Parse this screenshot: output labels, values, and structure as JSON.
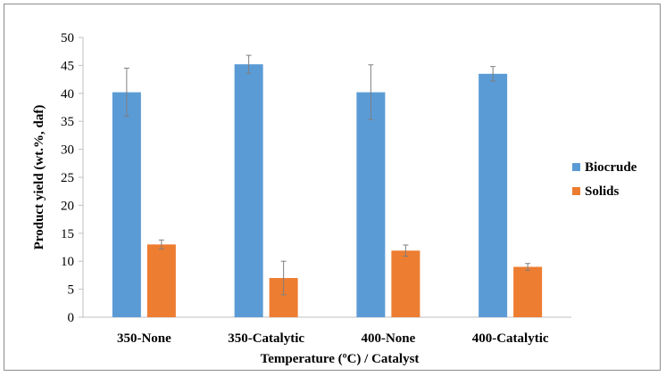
{
  "chart_data": {
    "type": "bar",
    "title": "",
    "xlabel": "Temperature (ºC) / Catalyst",
    "ylabel": "Product yield  (wt.%, daf)",
    "ylim": [
      0,
      50
    ],
    "yticks": [
      0,
      5,
      10,
      15,
      20,
      25,
      30,
      35,
      40,
      45,
      50
    ],
    "categories": [
      "350-None",
      "350-Catalytic",
      "400-None",
      "400-Catalytic"
    ],
    "series": [
      {
        "name": "Biocrude",
        "color": "#5b9bd5",
        "values": [
          40.2,
          45.2,
          40.2,
          43.5
        ],
        "error": [
          4.3,
          1.6,
          4.9,
          1.3
        ]
      },
      {
        "name": "Solids",
        "color": "#ed7d31",
        "values": [
          13.0,
          7.0,
          11.9,
          9.0
        ],
        "error": [
          0.8,
          3.0,
          1.0,
          0.6
        ]
      }
    ],
    "legend": "right",
    "grid": false
  }
}
